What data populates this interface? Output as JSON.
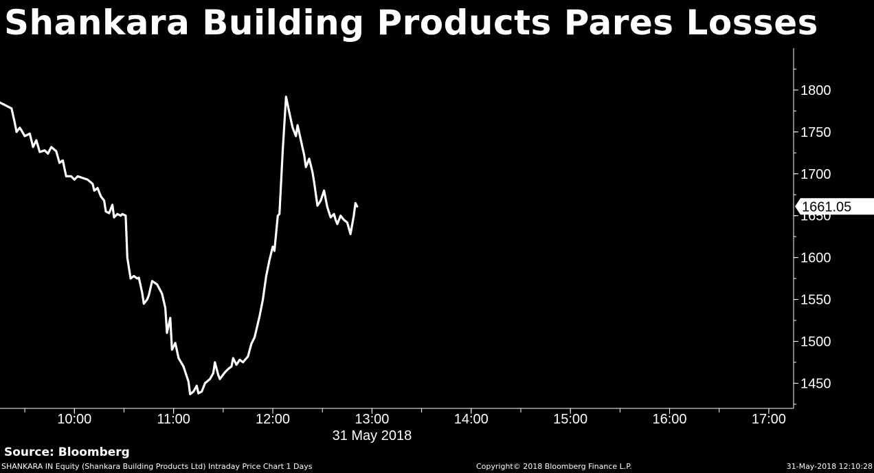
{
  "title": "Shankara Building Products Pares Losses",
  "source": "Source: Bloomberg",
  "footer": {
    "description": "SHANKARA IN Equity (Shankara Building Products Ltd) Intraday Price Chart 1 Days",
    "copyright": "Copyright© 2018 Bloomberg Finance L.P.",
    "timestamp": "31-May-2018 12:10:28"
  },
  "colors": {
    "background": "#000000",
    "line": "#ffffff",
    "last_price_bg": "#ffffff",
    "last_price_text": "#000000"
  },
  "chart_data": {
    "type": "line",
    "title": "Shankara Building Products Pares Losses",
    "xlabel": "31 May 2018",
    "ylabel": "",
    "x_ticks": [
      "10:00",
      "11:00",
      "12:00",
      "13:00",
      "14:00",
      "15:00",
      "16:00",
      "17:00"
    ],
    "y_ticks": [
      1450,
      1500,
      1550,
      1600,
      1650,
      1700,
      1750,
      1800
    ],
    "ylim": [
      1420,
      1850
    ],
    "xlim": [
      "09:15",
      "17:15"
    ],
    "y_axis_side": "right",
    "grid": false,
    "last_price": "1661.05",
    "series": [
      {
        "values": [
          [
            "09:15",
            1785
          ],
          [
            "09:22",
            1778
          ],
          [
            "09:24",
            1760
          ],
          [
            "09:25",
            1750
          ],
          [
            "09:27",
            1755
          ],
          [
            "09:30",
            1745
          ],
          [
            "09:33",
            1748
          ],
          [
            "09:35",
            1732
          ],
          [
            "09:37",
            1740
          ],
          [
            "09:39",
            1726
          ],
          [
            "09:42",
            1728
          ],
          [
            "09:44",
            1724
          ],
          [
            "09:46",
            1732
          ],
          [
            "09:49",
            1727
          ],
          [
            "09:51",
            1713
          ],
          [
            "09:53",
            1716
          ],
          [
            "09:55",
            1697
          ],
          [
            "09:58",
            1697
          ],
          [
            "10:00",
            1693
          ],
          [
            "10:02",
            1697
          ],
          [
            "10:05",
            1695
          ],
          [
            "10:08",
            1693
          ],
          [
            "10:11",
            1688
          ],
          [
            "10:12",
            1680
          ],
          [
            "10:14",
            1683
          ],
          [
            "10:16",
            1673
          ],
          [
            "10:18",
            1668
          ],
          [
            "10:19",
            1655
          ],
          [
            "10:21",
            1653
          ],
          [
            "10:23",
            1663
          ],
          [
            "10:24",
            1648
          ],
          [
            "10:26",
            1652
          ],
          [
            "10:28",
            1650
          ],
          [
            "10:29",
            1652
          ],
          [
            "10:31",
            1650
          ],
          [
            "10:32",
            1600
          ],
          [
            "10:34",
            1575
          ],
          [
            "10:36",
            1578
          ],
          [
            "10:38",
            1575
          ],
          [
            "10:39",
            1576
          ],
          [
            "10:41",
            1558
          ],
          [
            "10:42",
            1545
          ],
          [
            "10:44",
            1550
          ],
          [
            "10:45",
            1555
          ],
          [
            "10:47",
            1572
          ],
          [
            "10:50",
            1568
          ],
          [
            "10:53",
            1557
          ],
          [
            "10:55",
            1540
          ],
          [
            "10:56",
            1510
          ],
          [
            "10:58",
            1528
          ],
          [
            "10:59",
            1490
          ],
          [
            "11:01",
            1498
          ],
          [
            "11:03",
            1480
          ],
          [
            "11:06",
            1470
          ],
          [
            "11:08",
            1458
          ],
          [
            "11:09",
            1452
          ],
          [
            "11:10",
            1437
          ],
          [
            "11:12",
            1440
          ],
          [
            "11:14",
            1447
          ],
          [
            "11:15",
            1438
          ],
          [
            "11:17",
            1440
          ],
          [
            "11:19",
            1450
          ],
          [
            "11:22",
            1455
          ],
          [
            "11:24",
            1462
          ],
          [
            "11:25",
            1475
          ],
          [
            "11:27",
            1460
          ],
          [
            "11:28",
            1455
          ],
          [
            "11:31",
            1463
          ],
          [
            "11:33",
            1467
          ],
          [
            "11:35",
            1470
          ],
          [
            "11:36",
            1480
          ],
          [
            "11:38",
            1472
          ],
          [
            "11:40",
            1478
          ],
          [
            "11:42",
            1475
          ],
          [
            "11:45",
            1482
          ],
          [
            "11:47",
            1497
          ],
          [
            "11:49",
            1505
          ],
          [
            "11:52",
            1530
          ],
          [
            "11:54",
            1550
          ],
          [
            "11:56",
            1578
          ],
          [
            "11:58",
            1597
          ],
          [
            "12:00",
            1613
          ],
          [
            "12:01",
            1608
          ],
          [
            "12:03",
            1650
          ],
          [
            "12:04",
            1652
          ],
          [
            "12:06",
            1728
          ],
          [
            "12:08",
            1792
          ],
          [
            "12:10",
            1773
          ],
          [
            "12:12",
            1755
          ],
          [
            "12:14",
            1745
          ],
          [
            "12:15",
            1758
          ],
          [
            "12:17",
            1740
          ],
          [
            "12:19",
            1722
          ],
          [
            "12:20",
            1708
          ],
          [
            "12:22",
            1718
          ],
          [
            "12:24",
            1702
          ],
          [
            "12:25",
            1690
          ],
          [
            "12:27",
            1662
          ],
          [
            "12:29",
            1668
          ],
          [
            "12:31",
            1680
          ],
          [
            "12:32",
            1670
          ],
          [
            "12:33",
            1660
          ],
          [
            "12:35",
            1648
          ],
          [
            "12:37",
            1652
          ],
          [
            "12:38",
            1645
          ],
          [
            "12:39",
            1640
          ],
          [
            "12:41",
            1650
          ],
          [
            "12:43",
            1645
          ],
          [
            "12:45",
            1642
          ],
          [
            "12:47",
            1628
          ],
          [
            "12:49",
            1650
          ],
          [
            "12:50",
            1665
          ],
          [
            "12:51",
            1661.05
          ]
        ]
      }
    ]
  }
}
